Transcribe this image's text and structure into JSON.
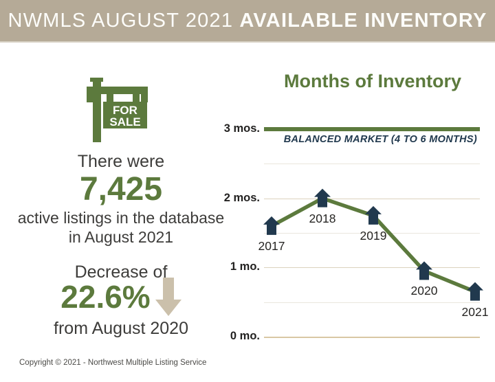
{
  "header": {
    "title_prefix": "NWMLS AUGUST 2021 ",
    "title_emphasis": "AVAILABLE INVENTORY"
  },
  "sign": {
    "line1": "FOR",
    "line2": "SALE"
  },
  "summary": {
    "intro": "There were",
    "active_count": "7,425",
    "description_line1": "active listings in the database",
    "description_line2": "in August 2021",
    "change_label": "Decrease of",
    "change_value": "22.6%",
    "change_reference": "from August 2020"
  },
  "chart_data": {
    "type": "line",
    "title": "Months of Inventory",
    "x": [
      "2017",
      "2018",
      "2019",
      "2020",
      "2021"
    ],
    "values": [
      1.6,
      2.0,
      1.75,
      0.95,
      0.65
    ],
    "xlabel": "",
    "ylabel": "",
    "ylim": [
      0,
      3
    ],
    "yticks": [
      {
        "value": 3,
        "label": "3 mos."
      },
      {
        "value": 2,
        "label": "2 mos."
      },
      {
        "value": 1,
        "label": "1 mo."
      },
      {
        "value": 0,
        "label": "0 mo."
      }
    ],
    "minor_gridlines": [
      2.5,
      1.5,
      0.5
    ],
    "grid": true,
    "legend_position": "none",
    "annotation": "BALANCED MARKET (4 TO 6 MONTHS)",
    "reference_line_value": 3,
    "marker_shape": "house"
  },
  "icons": {
    "sign": "for-sale-sign-icon",
    "arrow": "down-arrow-icon",
    "marker": "house-icon"
  },
  "colors": {
    "header_bg": "#b5aa97",
    "brand_green": "#5c7a3d",
    "marker_navy": "#21394e",
    "arrow_tan": "#cbc0ab",
    "text_dark": "#3d3c3a"
  },
  "footer": {
    "copyright": "Copyright © 2021 - Northwest Multiple Listing Service"
  }
}
